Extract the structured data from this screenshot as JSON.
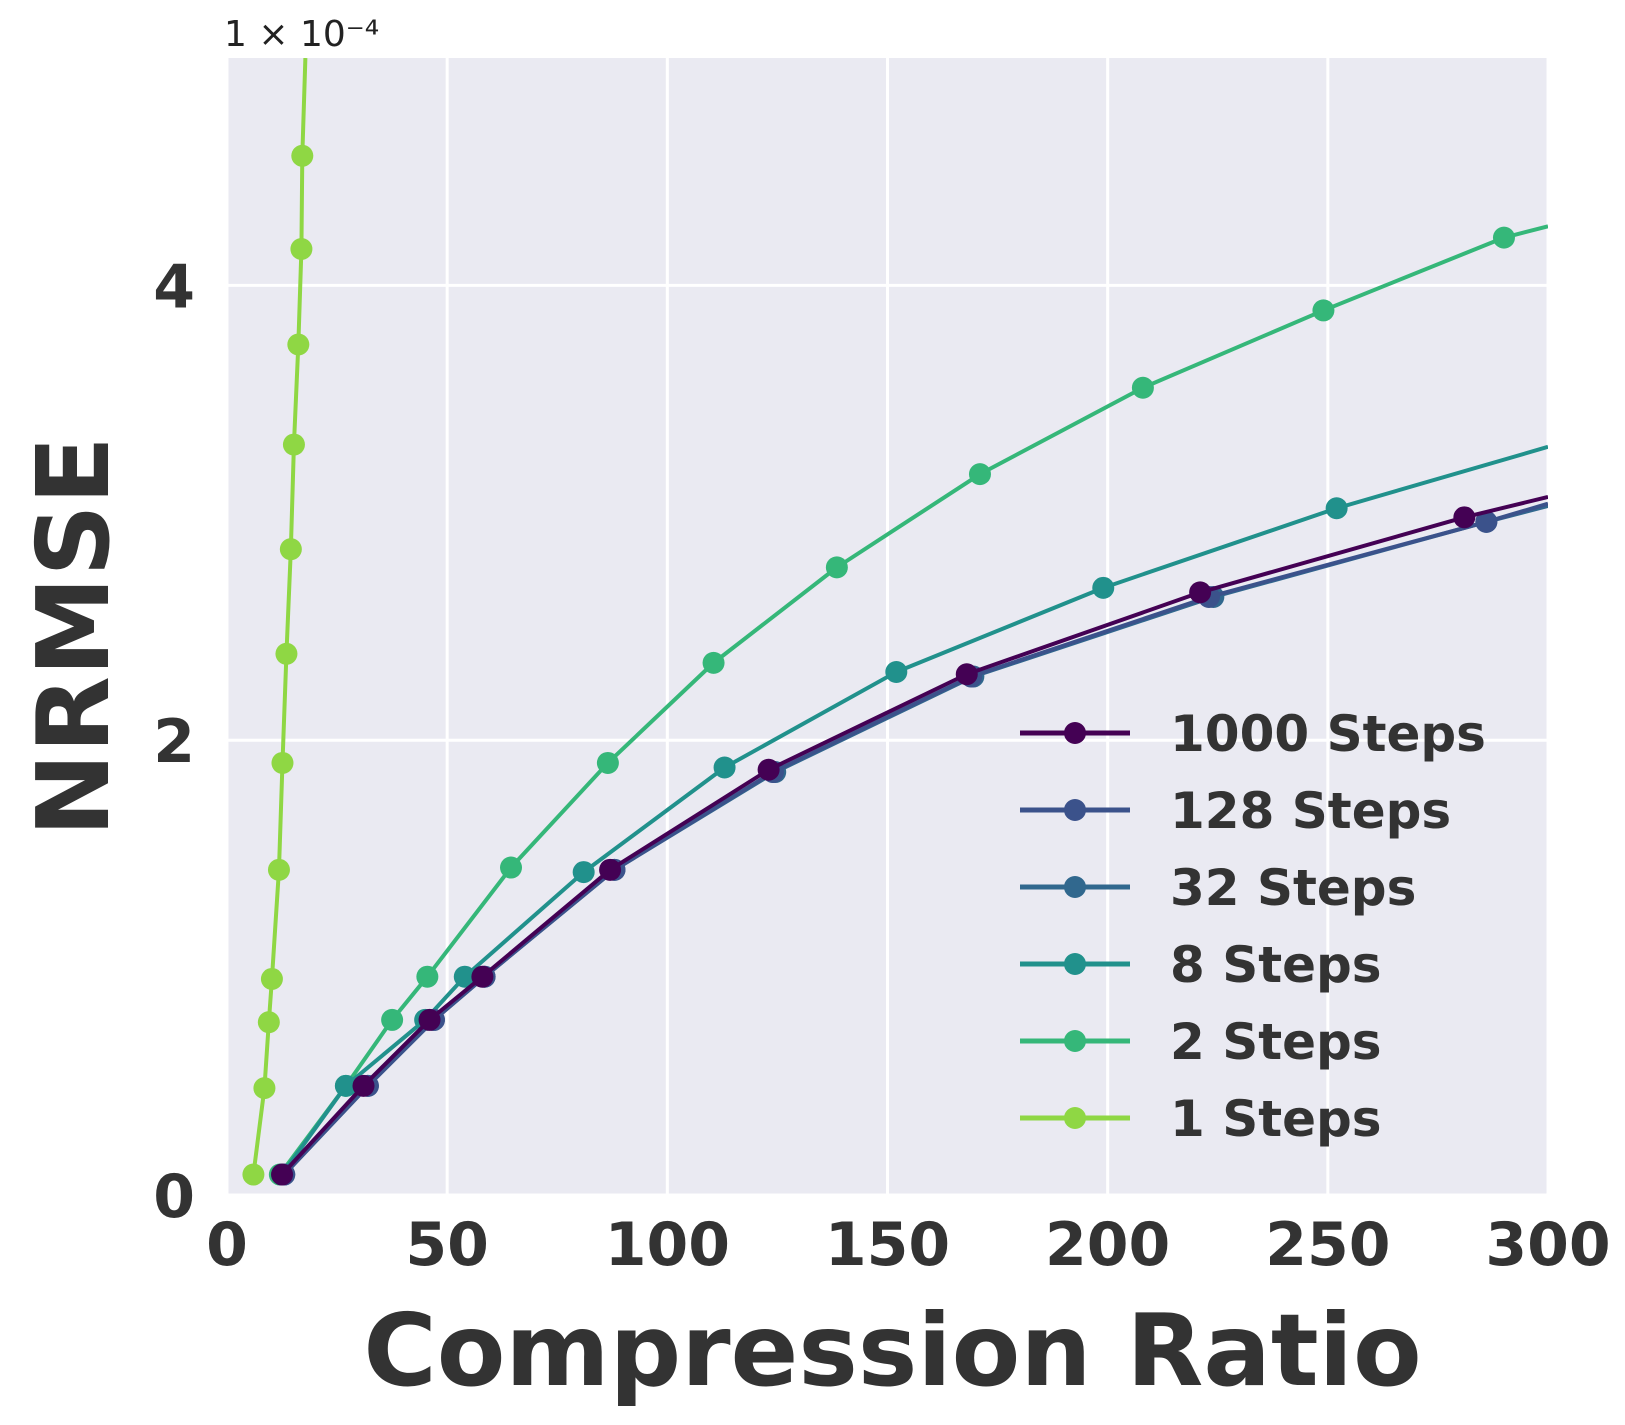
{
  "chart_data": {
    "type": "line",
    "xlabel": "Compression Ratio",
    "ylabel": "NRMSE",
    "y_offset_label": "1 × 10⁻⁴",
    "xlim": [
      0,
      300
    ],
    "ylim": [
      0,
      5
    ],
    "xticks": [
      0,
      50,
      100,
      150,
      200,
      250,
      300
    ],
    "yticks": [
      0,
      2,
      4
    ],
    "grid": true,
    "legend_position": "lower-right",
    "background": "#eaeaf2",
    "series": [
      {
        "name": "1000 Steps",
        "color": "#440154",
        "x": [
          12.5,
          31,
          46,
          58,
          87,
          123,
          168,
          221,
          281,
          300
        ],
        "y": [
          0.09,
          0.48,
          0.77,
          0.96,
          1.43,
          1.87,
          2.29,
          2.65,
          2.98,
          3.07
        ]
      },
      {
        "name": "128 Steps",
        "color": "#3b528b",
        "x": [
          13,
          32,
          47,
          58.5,
          88,
          124,
          169,
          223,
          286,
          300
        ],
        "y": [
          0.09,
          0.48,
          0.77,
          0.96,
          1.43,
          1.86,
          2.28,
          2.63,
          2.96,
          3.04
        ]
      },
      {
        "name": "32 Steps",
        "color": "#31688e",
        "x": [
          13,
          32,
          47,
          58.5,
          88,
          124.5,
          169.5,
          224,
          286,
          300
        ],
        "y": [
          0.09,
          0.48,
          0.77,
          0.96,
          1.43,
          1.86,
          2.28,
          2.63,
          2.96,
          3.03
        ]
      },
      {
        "name": "8 Steps",
        "color": "#21918c",
        "x": [
          12.5,
          27,
          45,
          54,
          81,
          113,
          152,
          199,
          252,
          300
        ],
        "y": [
          0.09,
          0.48,
          0.77,
          0.96,
          1.42,
          1.88,
          2.3,
          2.67,
          3.02,
          3.29
        ]
      },
      {
        "name": "2 Steps",
        "color": "#35b779",
        "x": [
          12,
          27,
          37.5,
          45.5,
          64.5,
          86.5,
          110.5,
          138.5,
          171,
          208,
          249,
          290,
          300
        ],
        "y": [
          0.09,
          0.48,
          0.77,
          0.96,
          1.44,
          1.9,
          2.34,
          2.76,
          3.17,
          3.55,
          3.89,
          4.21,
          4.26
        ]
      },
      {
        "name": "1 Steps",
        "color": "#8fd744",
        "x": [
          6,
          8.5,
          9.5,
          10.2,
          11.8,
          12.6,
          13.5,
          14.5,
          15.2,
          16.2,
          16.9,
          17.1,
          17.8
        ],
        "y": [
          0.09,
          0.47,
          0.76,
          0.95,
          1.43,
          1.9,
          2.38,
          2.84,
          3.3,
          3.74,
          4.16,
          4.57,
          5.0
        ]
      }
    ]
  }
}
